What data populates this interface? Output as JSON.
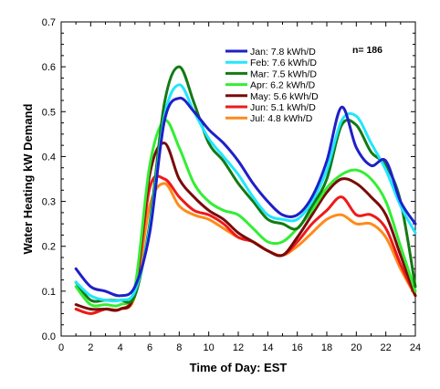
{
  "chart_data": {
    "type": "line",
    "xlabel": "Time of Day: EST",
    "ylabel": "Water Heating kW Demand",
    "xlim": [
      0,
      24
    ],
    "ylim": [
      0,
      0.7
    ],
    "xticks": [
      "0",
      "2",
      "4",
      "6",
      "8",
      "10",
      "12",
      "14",
      "16",
      "18",
      "20",
      "22",
      "24"
    ],
    "yticks": [
      "0.0",
      "0.1",
      "0.2",
      "0.3",
      "0.4",
      "0.5",
      "0.6",
      "0.7"
    ],
    "grid": false,
    "legend_position": "top-right",
    "annotation": "n= 186",
    "series": [
      {
        "name": "Jan: 7.8 kWh/D",
        "color": "#1f1fc8",
        "x": [
          1,
          2,
          3,
          4,
          5,
          6,
          7,
          8,
          9,
          10,
          11,
          12,
          13,
          14,
          15,
          16,
          17,
          18,
          19,
          20,
          21,
          22,
          23,
          24
        ],
        "y": [
          0.15,
          0.11,
          0.1,
          0.09,
          0.11,
          0.23,
          0.48,
          0.53,
          0.5,
          0.46,
          0.43,
          0.39,
          0.34,
          0.3,
          0.27,
          0.27,
          0.31,
          0.39,
          0.51,
          0.42,
          0.38,
          0.39,
          0.3,
          0.25
        ]
      },
      {
        "name": "Feb: 7.6 kWh/D",
        "color": "#20e6ff",
        "x": [
          1,
          2,
          3,
          4,
          5,
          6,
          7,
          8,
          9,
          10,
          11,
          12,
          13,
          14,
          15,
          16,
          17,
          18,
          19,
          20,
          21,
          22,
          23,
          24
        ],
        "y": [
          0.12,
          0.09,
          0.08,
          0.08,
          0.1,
          0.24,
          0.49,
          0.56,
          0.5,
          0.44,
          0.4,
          0.36,
          0.31,
          0.27,
          0.26,
          0.26,
          0.3,
          0.37,
          0.48,
          0.49,
          0.43,
          0.37,
          0.29,
          0.23
        ]
      },
      {
        "name": "Mar:  7.5 kWh/D",
        "color": "#137a13",
        "x": [
          1,
          2,
          3,
          4,
          5,
          6,
          7,
          8,
          9,
          10,
          11,
          12,
          13,
          14,
          15,
          16,
          17,
          18,
          19,
          20,
          21,
          22,
          23,
          24
        ],
        "y": [
          0.12,
          0.08,
          0.08,
          0.08,
          0.09,
          0.25,
          0.52,
          0.6,
          0.52,
          0.43,
          0.39,
          0.34,
          0.3,
          0.26,
          0.25,
          0.24,
          0.29,
          0.35,
          0.47,
          0.47,
          0.41,
          0.38,
          0.3,
          0.11
        ]
      },
      {
        "name": "Apr:  6.2 kWh/D",
        "color": "#33ee33",
        "x": [
          1,
          2,
          3,
          4,
          5,
          6,
          7,
          8,
          9,
          10,
          11,
          12,
          13,
          14,
          15,
          16,
          17,
          18,
          19,
          20,
          21,
          22,
          23,
          24
        ],
        "y": [
          0.11,
          0.07,
          0.07,
          0.07,
          0.11,
          0.38,
          0.48,
          0.42,
          0.34,
          0.3,
          0.28,
          0.27,
          0.24,
          0.21,
          0.21,
          0.24,
          0.28,
          0.33,
          0.36,
          0.37,
          0.35,
          0.3,
          0.2,
          0.1
        ]
      },
      {
        "name": "May:  5.6 kWh/D",
        "color": "#7a0a0a",
        "x": [
          1,
          2,
          3,
          4,
          5,
          6,
          7,
          8,
          9,
          10,
          11,
          12,
          13,
          14,
          15,
          16,
          17,
          18,
          19,
          20,
          21,
          22,
          23,
          24
        ],
        "y": [
          0.07,
          0.06,
          0.06,
          0.06,
          0.1,
          0.36,
          0.43,
          0.35,
          0.31,
          0.28,
          0.26,
          0.23,
          0.21,
          0.19,
          0.18,
          0.22,
          0.27,
          0.32,
          0.35,
          0.34,
          0.31,
          0.27,
          0.18,
          0.09
        ]
      },
      {
        "name": "Jun:  5.1 kWh/D",
        "color": "#ee1a1a",
        "x": [
          1,
          2,
          3,
          4,
          5,
          6,
          7,
          8,
          9,
          10,
          11,
          12,
          13,
          14,
          15,
          16,
          17,
          18,
          19,
          20,
          21,
          22,
          23,
          24
        ],
        "y": [
          0.06,
          0.05,
          0.06,
          0.06,
          0.1,
          0.33,
          0.35,
          0.31,
          0.28,
          0.27,
          0.25,
          0.22,
          0.21,
          0.19,
          0.18,
          0.21,
          0.25,
          0.28,
          0.31,
          0.27,
          0.27,
          0.24,
          0.16,
          0.09
        ]
      },
      {
        "name": "Jul:  4.8 kWh/D",
        "color": "#ff8a1a",
        "x": [
          1,
          2,
          3,
          4,
          5,
          6,
          7,
          8,
          9,
          10,
          11,
          12,
          13,
          14,
          15,
          16,
          17,
          18,
          19,
          20,
          21,
          22,
          23,
          24
        ],
        "y": [
          0.06,
          0.05,
          0.06,
          0.06,
          0.09,
          0.29,
          0.34,
          0.29,
          0.27,
          0.26,
          0.24,
          0.22,
          0.21,
          0.19,
          0.18,
          0.2,
          0.23,
          0.26,
          0.27,
          0.25,
          0.25,
          0.22,
          0.15,
          0.09
        ]
      }
    ]
  }
}
